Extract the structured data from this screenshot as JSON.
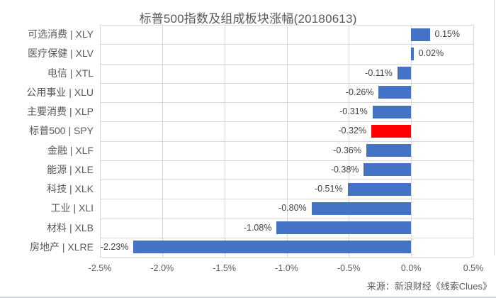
{
  "source": "来源：新浪财经《线索Clues》",
  "colors": {
    "bar": "#4472C4",
    "highlight": "#FF0000",
    "gridline": "#D9D9D9",
    "axis_text": "#595959",
    "value_text": "#404040"
  },
  "chart_data": {
    "type": "bar",
    "orientation": "horizontal",
    "title": "标普500指数及组成板块涨幅(20180613)",
    "categories": [
      "可选消费 | XLY",
      "医疗保健 | XLV",
      "电信 | XTL",
      "公用事业 | XLU",
      "主要消费 | XLP",
      "标普500 | SPY",
      "金融 | XLF",
      "能源 | XLE",
      "科技 | XLK",
      "工业 | XLI",
      "材料 | XLB",
      "房地产 | XLRE"
    ],
    "values": [
      0.15,
      0.02,
      -0.11,
      -0.26,
      -0.31,
      -0.32,
      -0.36,
      -0.38,
      -0.51,
      -0.8,
      -1.08,
      -2.23
    ],
    "value_labels": [
      "0.15%",
      "0.02%",
      "-0.11%",
      "-0.26%",
      "-0.31%",
      "-0.32%",
      "-0.36%",
      "-0.38%",
      "-0.51%",
      "-0.80%",
      "-1.08%",
      "-2.23%"
    ],
    "highlight_index": 5,
    "xlim": [
      -2.5,
      0.5
    ],
    "x_tick_values": [
      -2.5,
      -2.0,
      -1.5,
      -1.0,
      -0.5,
      0.0,
      0.5
    ],
    "x_tick_labels": [
      "-2.5%",
      "-2.0%",
      "-1.5%",
      "-1.0%",
      "-0.5%",
      "0.0%",
      "0.5%"
    ],
    "grid": true,
    "legend": false
  }
}
